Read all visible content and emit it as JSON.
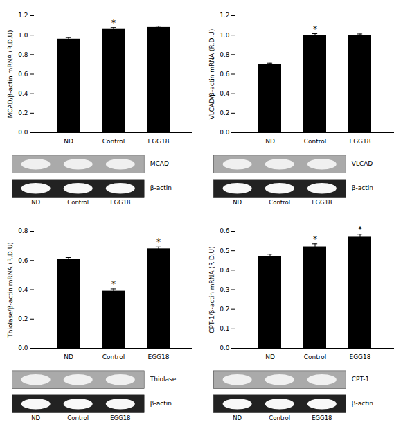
{
  "chart_data": [
    {
      "type": "bar",
      "ylabel": "MCAD/β-actin mRNA (R.D.U)",
      "categories": [
        "ND",
        "Control",
        "EGG18"
      ],
      "values": [
        0.96,
        1.06,
        1.08
      ],
      "errors": [
        0.015,
        0.018,
        0.012
      ],
      "color": "#000000",
      "ylim": [
        0.0,
        1.2
      ],
      "yticks": [
        {
          "value": 0.0,
          "label": "0.0"
        },
        0.2,
        0.4,
        0.6,
        0.8,
        {
          "value": 1.0,
          "label": "1.0"
        },
        1.2
      ],
      "annotations": [
        {
          "text": "*",
          "x": "Control"
        }
      ],
      "gel_labels": [
        "MCAD",
        "β-actin"
      ]
    },
    {
      "type": "bar",
      "ylabel": "VLCAD/β-actin mRNA (R.D.U)",
      "categories": [
        "ND",
        "Control",
        "EGG18"
      ],
      "values": [
        0.7,
        1.0,
        1.0
      ],
      "errors": [
        0.012,
        0.015,
        0.012
      ],
      "color": "#000000",
      "ylim": [
        0.0,
        1.2
      ],
      "yticks": [
        {
          "value": 0.0,
          "label": "0.0"
        },
        0.2,
        0.4,
        0.6,
        0.8,
        {
          "value": 1.0,
          "label": "1.0"
        },
        1.2
      ],
      "annotations": [
        {
          "text": "*",
          "x": "Control"
        }
      ],
      "gel_labels": [
        "VLCAD",
        "β-actin"
      ]
    },
    {
      "type": "bar",
      "ylabel": "Thiolase/β-actin mRNA (R.D.U)",
      "categories": [
        "ND",
        "Control",
        "EGG18"
      ],
      "values": [
        0.61,
        0.39,
        0.68
      ],
      "errors": [
        0.01,
        0.015,
        0.012
      ],
      "color": "#000000",
      "ylim": [
        0.0,
        0.8
      ],
      "yticks": [
        {
          "value": 0.0,
          "label": "0.0"
        },
        0.2,
        0.4,
        0.6,
        0.8
      ],
      "annotations": [
        {
          "text": "*",
          "x": "Control"
        },
        {
          "text": "*",
          "x": "EGG18"
        }
      ],
      "gel_labels": [
        "Thiolase",
        "β-actin"
      ]
    },
    {
      "type": "bar",
      "ylabel": "CPT-1/β-actin mRNA (R.D.U)",
      "categories": [
        "ND",
        "Control",
        "EGG18"
      ],
      "values": [
        0.47,
        0.52,
        0.57
      ],
      "errors": [
        0.012,
        0.015,
        0.015
      ],
      "color": "#000000",
      "ylim": [
        0.0,
        0.6
      ],
      "yticks": [
        {
          "value": 0.0,
          "label": "0.0"
        },
        0.1,
        0.2,
        0.3,
        0.4,
        0.5,
        0.6
      ],
      "annotations": [
        {
          "text": "*",
          "x": "Control"
        },
        {
          "text": "*",
          "x": "EGG18"
        }
      ],
      "gel_labels": [
        "CPT-1",
        "β-actin"
      ]
    }
  ]
}
